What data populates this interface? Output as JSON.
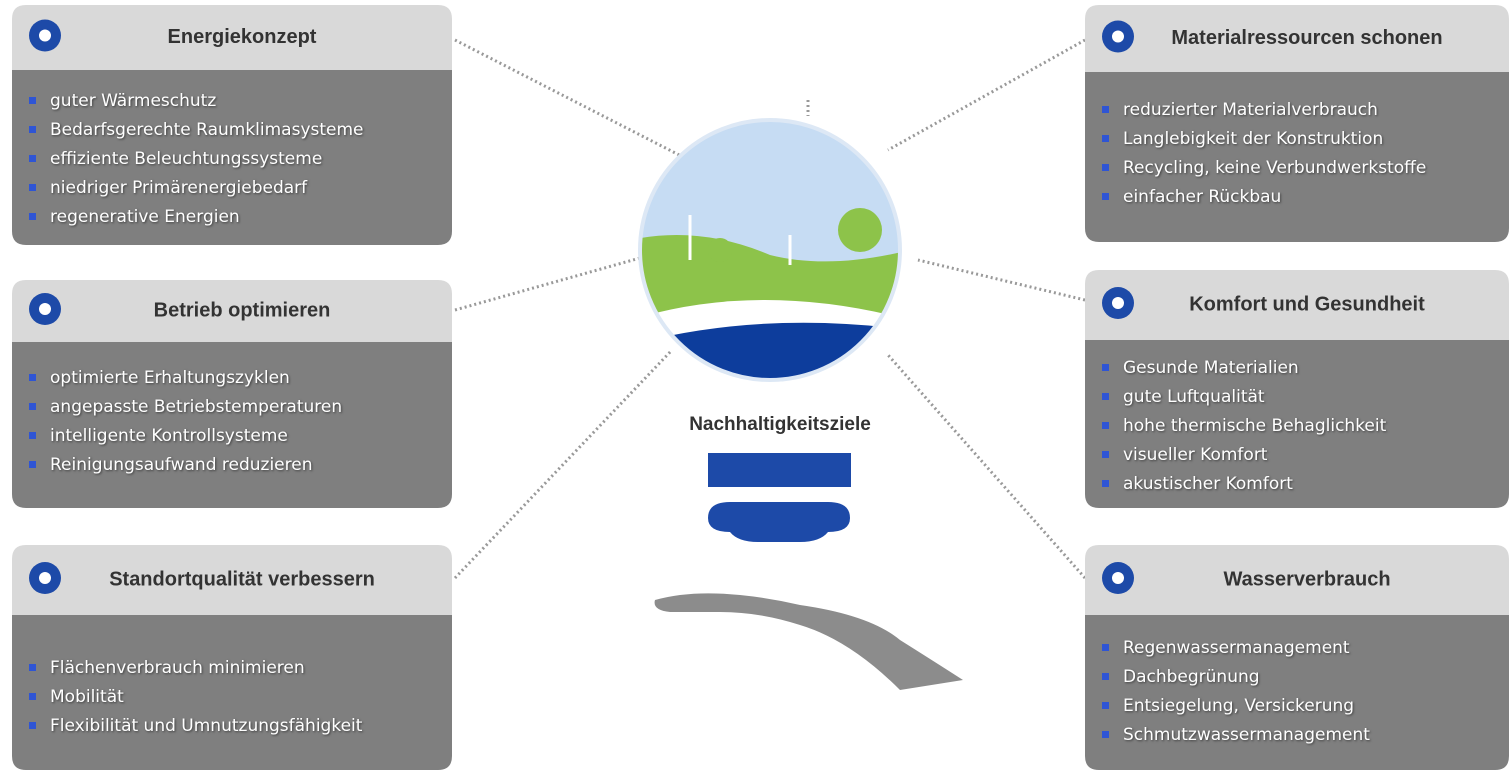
{
  "center_label": "Nachhaltigkeitsziele",
  "cards": [
    {
      "title": "Energiekonzept",
      "items": [
        "guter Wärmeschutz",
        "Bedarfsgerechte Raumklimasysteme",
        "effiziente Beleuchtungssysteme",
        "niedriger Primärenergiebedarf",
        "regenerative Energien"
      ]
    },
    {
      "title": "Betrieb optimieren",
      "items": [
        "optimierte Erhaltungszyklen",
        "angepasste Betriebstemperaturen",
        "intelligente Kontrollsysteme",
        "Reinigungsaufwand reduzieren"
      ]
    },
    {
      "title": "Standortqualität verbessern",
      "items": [
        "Flächenverbrauch minimieren",
        "Mobilität",
        "Flexibilität und Umnutzungsfähigkeit"
      ]
    },
    {
      "title": "Materialressourcen schonen",
      "items": [
        "reduzierter Materialverbrauch",
        "Langlebigkeit der Konstruktion",
        "Recycling, keine Verbundwerkstoffe",
        "einfacher Rückbau"
      ]
    },
    {
      "title": "Komfort und Gesundheit",
      "items": [
        "Gesunde Materialien",
        "gute Luftqualität",
        "hohe thermische Behaglichkeit",
        "visueller Komfort",
        "akustischer Komfort"
      ]
    },
    {
      "title": "Wasserverbrauch",
      "items": [
        "Regenwassermanagement",
        "Dachbegrünung",
        "Entsiegelung, Versickerung",
        "Schmutzwassermanagement"
      ]
    }
  ]
}
